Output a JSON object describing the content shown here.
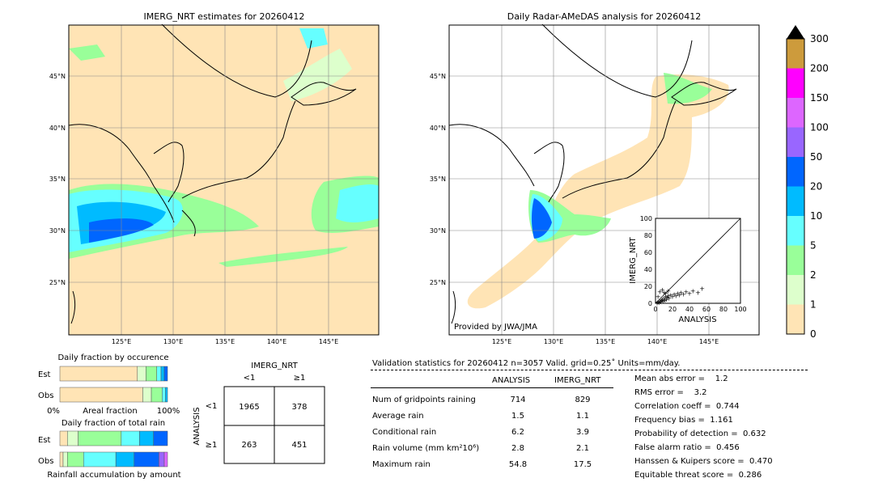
{
  "left_map": {
    "title": "IMERG_NRT estimates for 20260412",
    "lat_ticks": [
      "45°N",
      "40°N",
      "35°N",
      "30°N",
      "25°N"
    ],
    "lon_ticks": [
      "125°E",
      "130°E",
      "135°E",
      "140°E",
      "145°E"
    ]
  },
  "right_map": {
    "title": "Daily Radar-AMeDAS analysis for 20260412",
    "lat_ticks": [
      "45°N",
      "40°N",
      "35°N",
      "30°N",
      "25°N"
    ],
    "lon_ticks": [
      "125°E",
      "130°E",
      "135°E",
      "140°E",
      "145°E"
    ],
    "credit": "Provided by JWA/JMA"
  },
  "colorbar": {
    "labels": [
      "300",
      "200",
      "150",
      "100",
      "50",
      "20",
      "10",
      "5",
      "2",
      "1",
      "0"
    ],
    "colors": [
      "#cd9b3c",
      "#ff00ff",
      "#dd66ff",
      "#9966ff",
      "#0066ff",
      "#00bbff",
      "#66ffff",
      "#99ff99",
      "#ddffcc",
      "#ffe4b5"
    ]
  },
  "inset_scatter": {
    "xlabel": "ANALYSIS",
    "ylabel": "IMERG_NRT",
    "ticks": [
      "0",
      "20",
      "40",
      "60",
      "80",
      "100"
    ]
  },
  "fraction_occurrence": {
    "title": "Daily fraction by occurence",
    "rows": [
      "Est",
      "Obs"
    ],
    "xlabel_left": "0%",
    "xlabel_mid": "Areal fraction",
    "xlabel_right": "100%"
  },
  "fraction_total": {
    "title": "Daily fraction of total rain",
    "rows": [
      "Est",
      "Obs"
    ],
    "xlabel": "Rainfall accumulation by amount"
  },
  "contingency": {
    "col_header": "IMERG_NRT",
    "row_header": "ANALYSIS",
    "col_labels": [
      "<1",
      "≥1"
    ],
    "row_labels": [
      "<1",
      "≥1"
    ],
    "cells": [
      [
        "1965",
        "378"
      ],
      [
        "263",
        "451"
      ]
    ]
  },
  "validation": {
    "title": "Validation statistics for 20260412  n=3057 Valid. grid=0.25˚ Units=mm/day.",
    "col_analysis": "ANALYSIS",
    "col_imerg": "IMERG_NRT",
    "rows": [
      {
        "label": "Num of gridpoints raining",
        "analysis": "714",
        "imerg": "829"
      },
      {
        "label": "Average rain",
        "analysis": "1.5",
        "imerg": "1.1"
      },
      {
        "label": "Conditional rain",
        "analysis": "6.2",
        "imerg": "3.9"
      },
      {
        "label": "Rain volume (mm km²10⁶)",
        "analysis": "2.8",
        "imerg": "2.1"
      },
      {
        "label": "Maximum rain",
        "analysis": "54.8",
        "imerg": "17.5"
      }
    ],
    "scores": [
      "Mean abs error =    1.2",
      "RMS error =    3.2",
      "Correlation coeff =  0.744",
      "Frequency bias =  1.161",
      "Probability of detection =  0.632",
      "False alarm ratio =  0.456",
      "Hanssen & Kuipers score =  0.470",
      "Equitable threat score =  0.286"
    ]
  },
  "chart_data": [
    {
      "type": "scatter",
      "xlabel": "ANALYSIS",
      "ylabel": "IMERG_NRT",
      "xlim": [
        0,
        100
      ],
      "ylim": [
        0,
        100
      ],
      "points": [
        [
          2,
          1
        ],
        [
          3,
          2
        ],
        [
          4,
          1
        ],
        [
          5,
          3
        ],
        [
          6,
          2
        ],
        [
          7,
          4
        ],
        [
          8,
          5
        ],
        [
          9,
          3
        ],
        [
          10,
          6
        ],
        [
          11,
          4
        ],
        [
          12,
          8
        ],
        [
          13,
          5
        ],
        [
          14,
          7
        ],
        [
          15,
          9
        ],
        [
          16,
          6
        ],
        [
          18,
          10
        ],
        [
          20,
          8
        ],
        [
          22,
          11
        ],
        [
          24,
          9
        ],
        [
          26,
          12
        ],
        [
          28,
          10
        ],
        [
          30,
          13
        ],
        [
          33,
          11
        ],
        [
          36,
          14
        ],
        [
          40,
          12
        ],
        [
          44,
          15
        ],
        [
          50,
          13
        ],
        [
          54.8,
          17.5
        ],
        [
          3,
          8
        ],
        [
          5,
          14
        ],
        [
          8,
          16
        ],
        [
          10,
          13
        ],
        [
          12,
          12
        ],
        [
          15,
          15
        ]
      ]
    },
    {
      "type": "bar",
      "title": "Daily fraction by occurence",
      "stacked": true,
      "series": [
        {
          "row": "Est",
          "segments": [
            0.72,
            0.08,
            0.1,
            0.04,
            0.03,
            0.03
          ]
        },
        {
          "row": "Obs",
          "segments": [
            0.77,
            0.08,
            0.1,
            0.03,
            0.02
          ]
        }
      ],
      "colors": [
        "#ffe4b5",
        "#ddffcc",
        "#99ff99",
        "#66ffff",
        "#00bbff",
        "#0066ff"
      ]
    },
    {
      "type": "bar",
      "title": "Daily fraction of total rain",
      "stacked": true,
      "series": [
        {
          "row": "Est",
          "segments": [
            0.07,
            0.1,
            0.4,
            0.17,
            0.13,
            0.13
          ]
        },
        {
          "row": "Obs",
          "segments": [
            0.03,
            0.04,
            0.15,
            0.3,
            0.17,
            0.23,
            0.05,
            0.03
          ]
        }
      ],
      "colors": [
        "#ffe4b5",
        "#ddffcc",
        "#99ff99",
        "#66ffff",
        "#00bbff",
        "#0066ff",
        "#9966ff",
        "#dd66ff"
      ]
    }
  ]
}
